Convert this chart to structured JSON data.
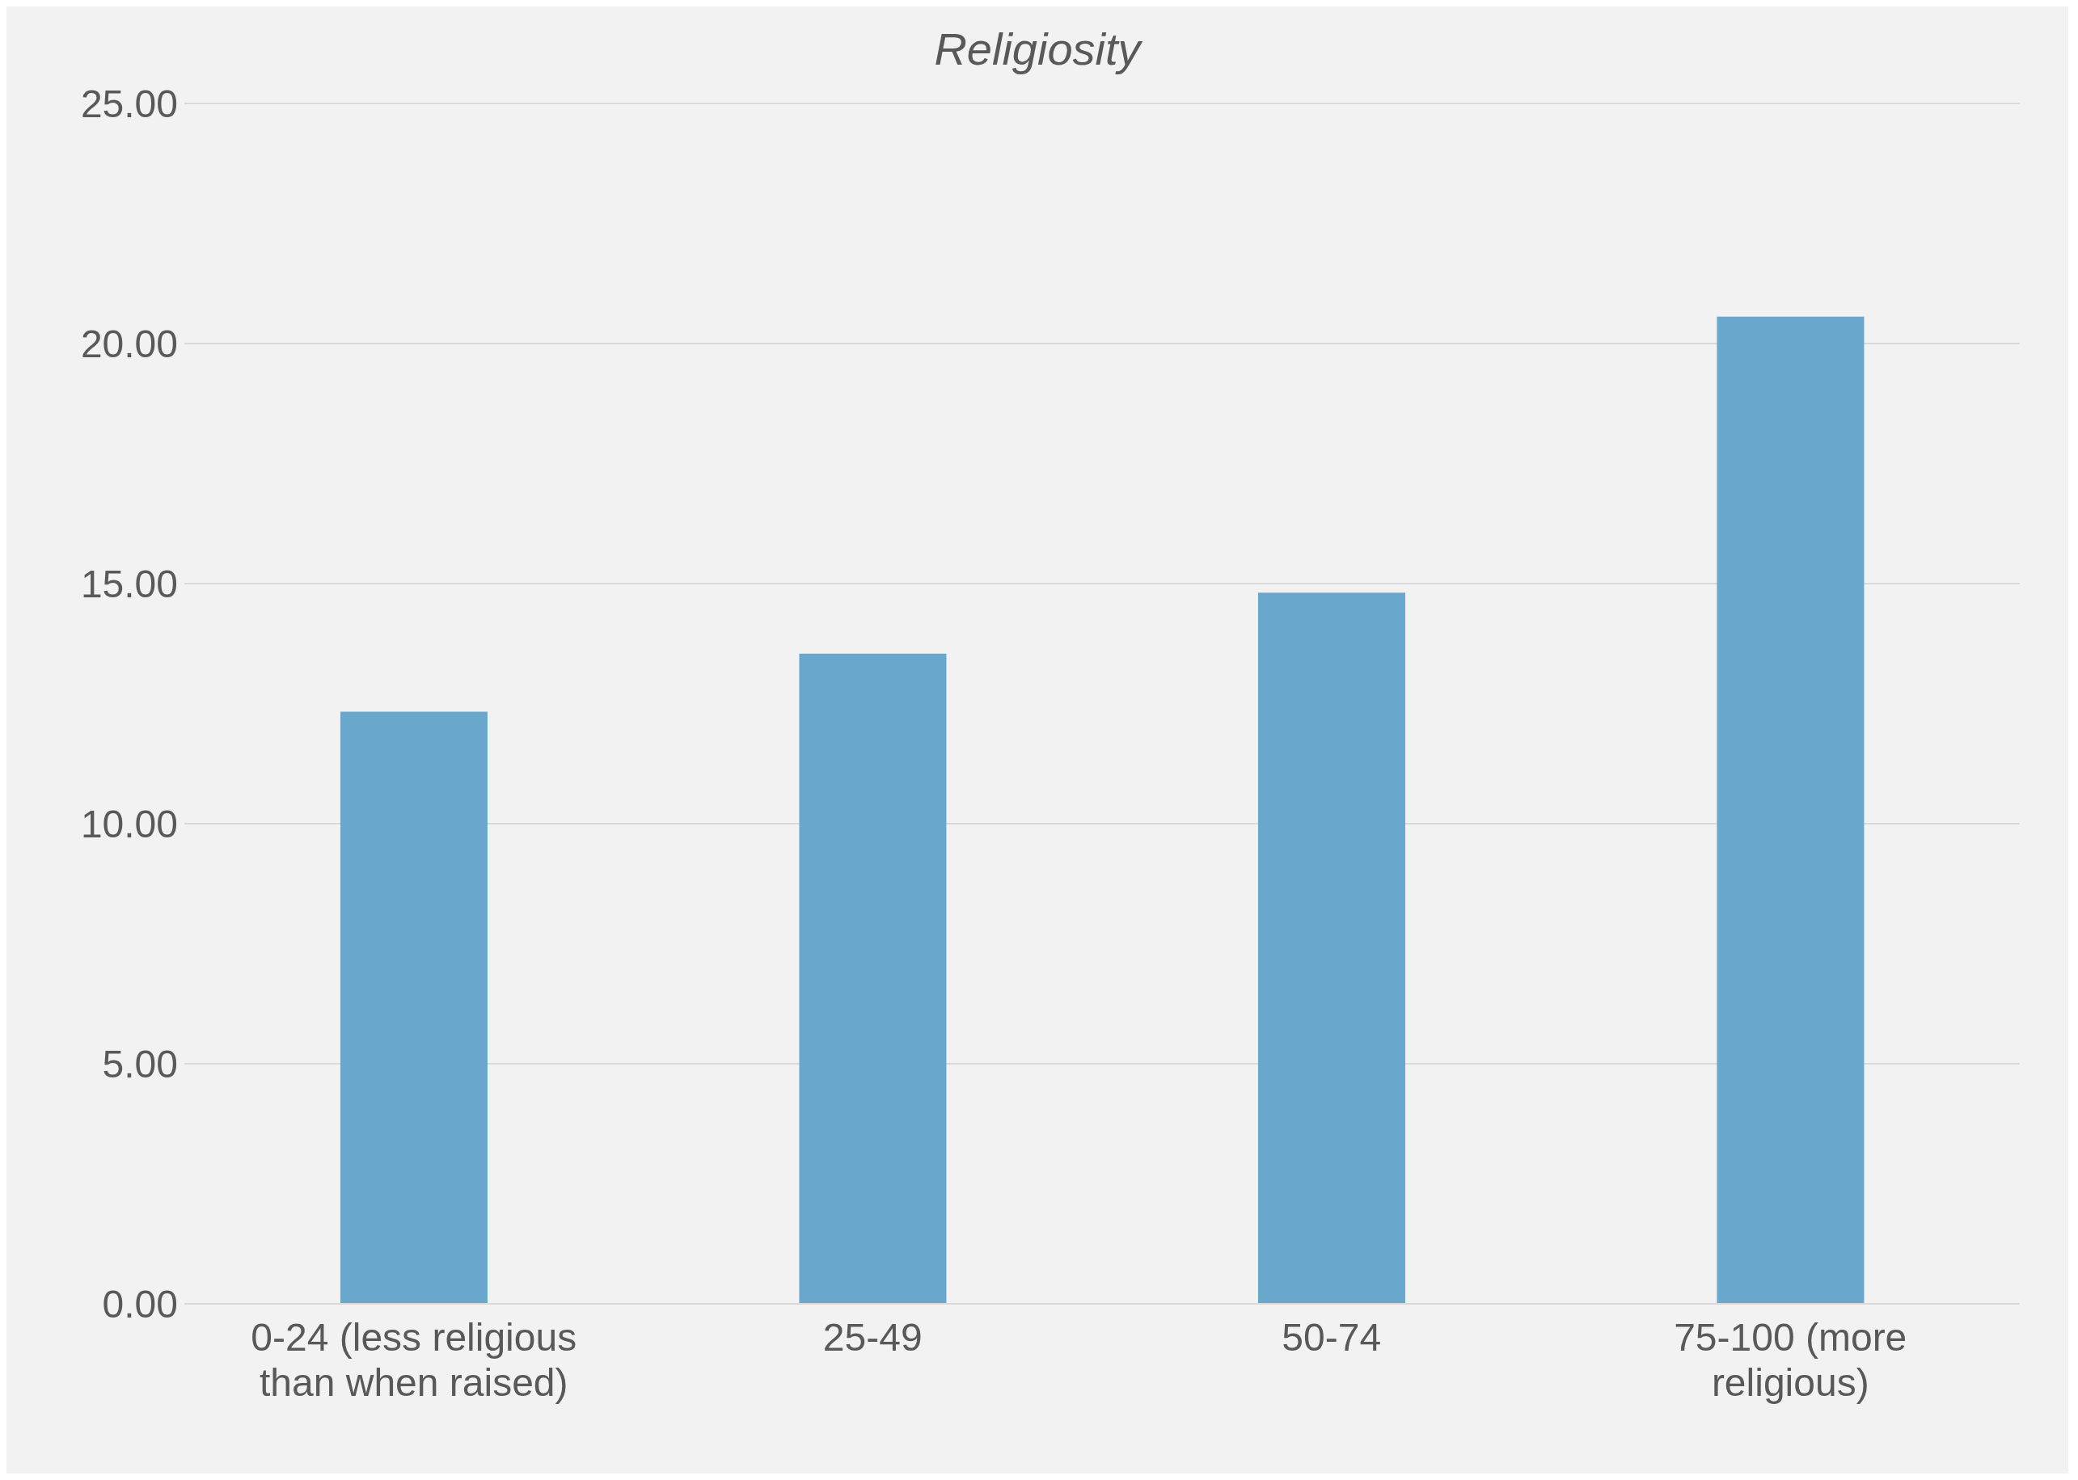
{
  "chart_data": {
    "type": "bar",
    "title": "Religiosity",
    "categories": [
      "0-24 (less religious than when raised)",
      "25-49",
      "50-74",
      "75-100 (more religious)"
    ],
    "values": [
      12.33,
      13.54,
      14.81,
      20.56
    ],
    "color": "#69a7cc",
    "ylim": [
      0,
      25
    ],
    "yticks": [
      {
        "value": 0,
        "label": "0.00"
      },
      {
        "value": 5,
        "label": "5.00"
      },
      {
        "value": 10,
        "label": "10.00"
      },
      {
        "value": 15,
        "label": "15.00"
      },
      {
        "value": 20,
        "label": "20.00"
      },
      {
        "value": 25,
        "label": "25.00"
      }
    ],
    "grid": "y"
  }
}
